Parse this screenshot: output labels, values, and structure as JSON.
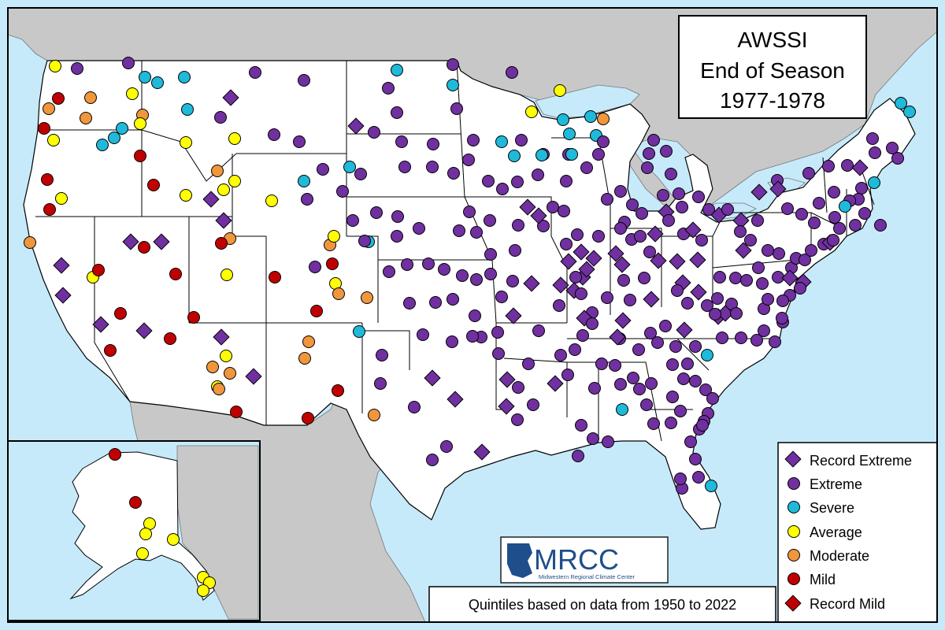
{
  "title": {
    "line1": "AWSSI",
    "line2": "End of Season",
    "line3": "1977-1978"
  },
  "legend": {
    "items": [
      {
        "label": "Record Extreme",
        "shape": "diamond",
        "color": "#7030a0"
      },
      {
        "label": "Extreme",
        "shape": "circle",
        "color": "#7030a0"
      },
      {
        "label": "Severe",
        "shape": "circle",
        "color": "#1fb9d9"
      },
      {
        "label": "Average",
        "shape": "circle",
        "color": "#ffff00"
      },
      {
        "label": "Moderate",
        "shape": "circle",
        "color": "#f0963c"
      },
      {
        "label": "Mild",
        "shape": "circle",
        "color": "#c00000"
      },
      {
        "label": "Record Mild",
        "shape": "diamond",
        "color": "#c00000"
      }
    ]
  },
  "footnote": "Quintiles based on data from 1950 to 2022",
  "logo": {
    "name": "MRCC",
    "subtitle": "Midwestern Regional Climate Center"
  },
  "colors": {
    "water": "#c6eafa",
    "foreign_land": "#c8c8c8",
    "us_land": "#ffffff",
    "border": "#000000"
  }
}
